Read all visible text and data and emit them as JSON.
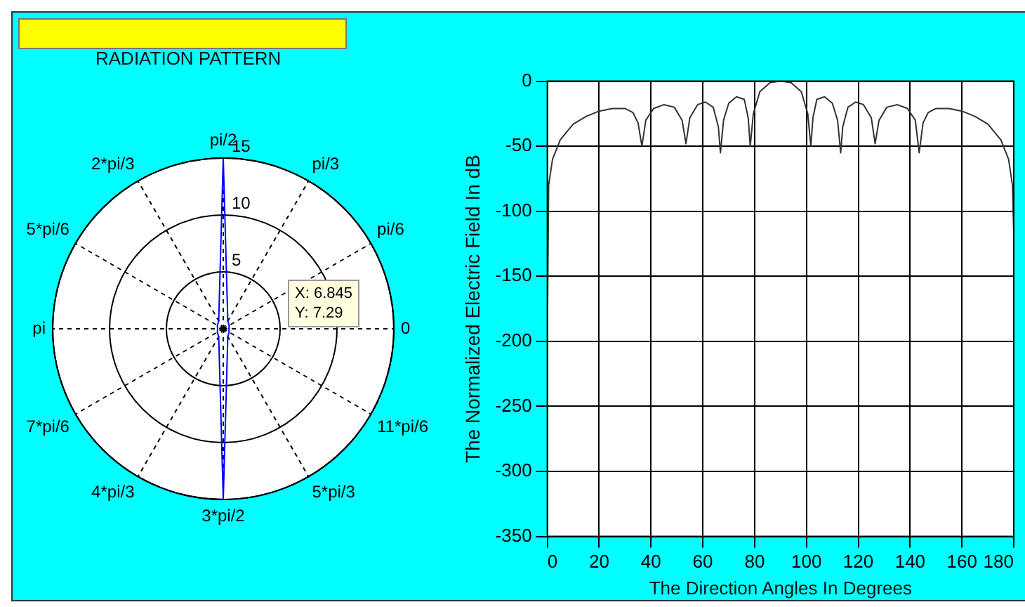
{
  "chart_data": [
    {
      "type": "radar",
      "title": "RADIATION PATTERN",
      "categories": [
        "pi/2",
        "pi/3",
        "pi/6",
        "0",
        "11*pi/6",
        "5*pi/3",
        "3*pi/2",
        "4*pi/3",
        "7*pi/6",
        "pi",
        "5*pi/6",
        "2*pi/3"
      ],
      "series": [
        {
          "color": "#0000ff",
          "values": [
            15,
            0.8,
            0.6,
            0.5,
            0.6,
            0.8,
            15,
            0.8,
            0.6,
            0.5,
            0.6,
            0.8
          ]
        }
      ],
      "ylim": [
        0,
        15
      ],
      "yticks": [
        5,
        10,
        15
      ],
      "grid": true,
      "marker": "none",
      "legend": false,
      "annotations": [
        "X: 6.845",
        "Y: 7.29"
      ]
    },
    {
      "type": "line",
      "xlabel": "The Direction Angles In Degrees",
      "ylabel": "The Normalized Electric Field In dB",
      "series": [
        {
          "color": "#333333",
          "x": [
            0,
            0.5,
            2,
            5,
            10,
            15,
            20,
            25,
            30,
            33,
            35,
            36.5,
            38,
            41,
            45,
            49,
            52,
            53.5,
            55,
            58,
            61,
            64,
            66,
            66.8,
            68,
            70,
            73,
            76,
            77.5,
            78.3,
            79.5,
            82,
            86,
            90,
            94,
            98,
            100.5,
            101.7,
            102.5,
            104,
            107,
            110,
            112,
            113.2,
            114,
            116,
            119,
            122,
            125,
            126.5,
            128,
            131,
            135,
            139,
            142,
            143.5,
            145,
            147,
            150,
            155,
            160,
            165,
            170,
            175,
            178,
            179.5,
            180
          ],
          "values": [
            -195,
            -80,
            -60,
            -45,
            -33,
            -27,
            -23,
            -21,
            -21,
            -24,
            -32,
            -50,
            -30,
            -21,
            -18,
            -20,
            -30,
            -48,
            -28,
            -18,
            -16,
            -20,
            -35,
            -55,
            -30,
            -17,
            -12,
            -14,
            -28,
            -50,
            -25,
            -8,
            -1,
            0,
            -1,
            -8,
            -25,
            -50,
            -28,
            -14,
            -12,
            -17,
            -30,
            -55,
            -35,
            -20,
            -16,
            -18,
            -28,
            -48,
            -30,
            -20,
            -18,
            -21,
            -30,
            -55,
            -32,
            -24,
            -21,
            -21,
            -23,
            -27,
            -33,
            -45,
            -60,
            -80,
            -118
          ]
        }
      ],
      "xlim": [
        0,
        180
      ],
      "xticks": [
        0,
        20,
        40,
        60,
        80,
        100,
        120,
        140,
        160,
        180
      ],
      "ylim": [
        -350,
        0
      ],
      "yticks": [
        -350,
        -300,
        -250,
        -200,
        -150,
        -100,
        -50,
        0
      ],
      "grid": true,
      "marker": "none",
      "line_style": "solid",
      "legend": false
    }
  ]
}
